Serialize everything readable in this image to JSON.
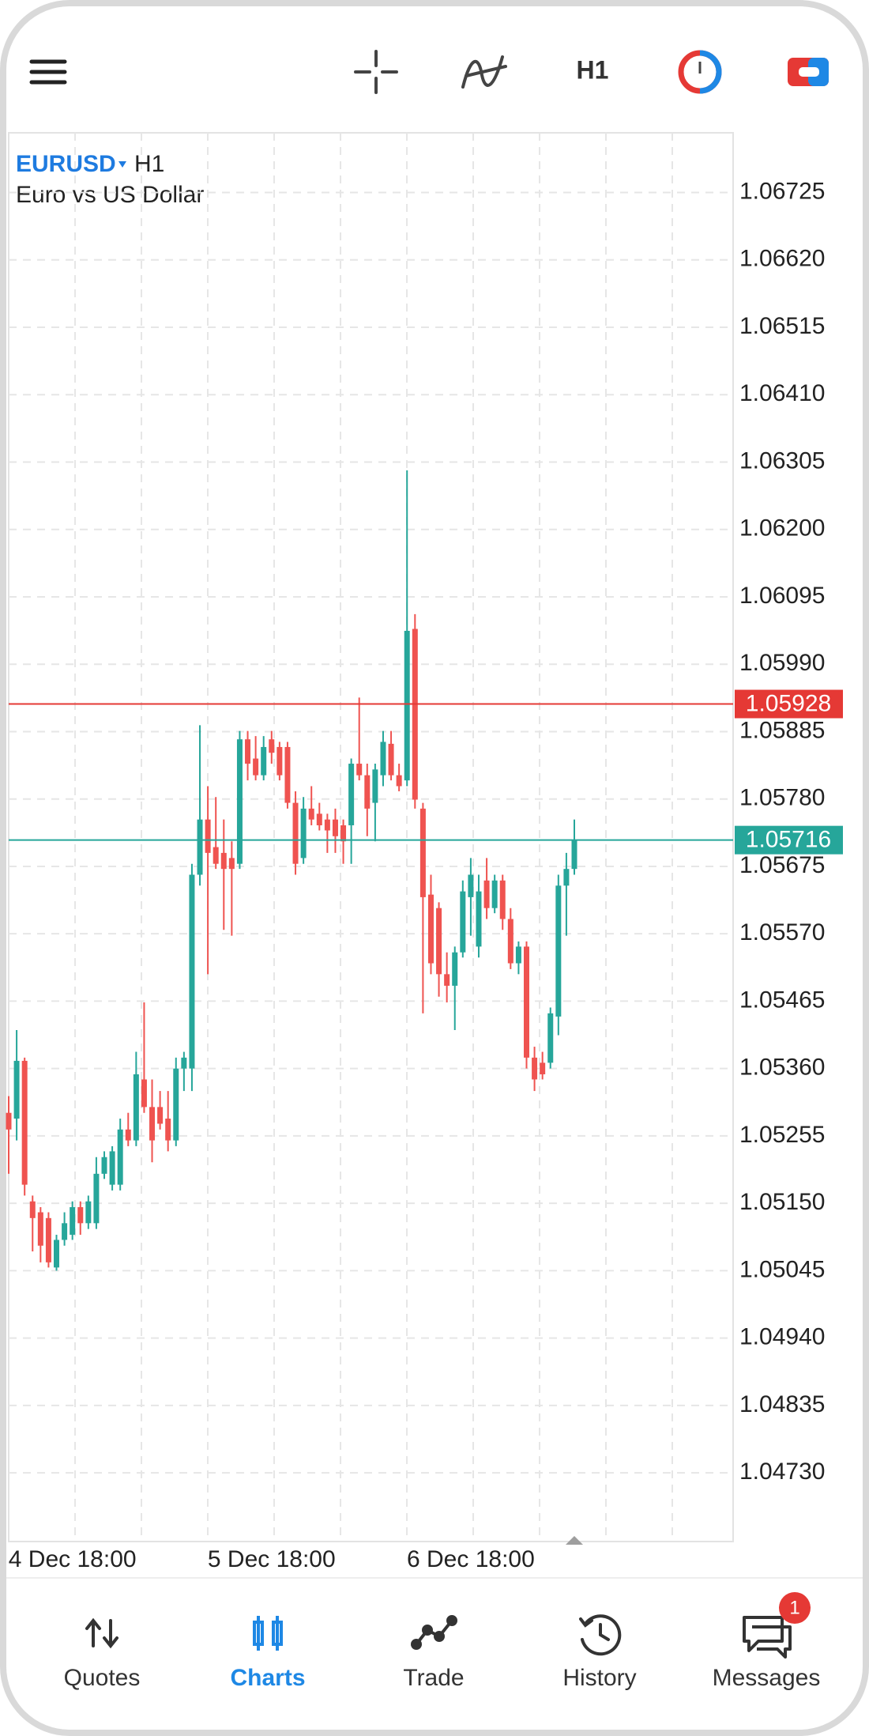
{
  "toolbar": {
    "timeframe": "H1"
  },
  "chart_data": {
    "type": "candlestick",
    "symbol": "EURUSD",
    "timeframe": "H1",
    "description": "Euro vs US Dollar",
    "categories": [
      null,
      null,
      null,
      null,
      null,
      null,
      null,
      null,
      "4 Dec 18:00",
      null,
      null,
      null,
      null,
      null,
      null,
      null,
      null,
      null,
      null,
      null,
      null,
      null,
      null,
      null,
      null,
      null,
      null,
      null,
      null,
      null,
      null,
      null,
      null,
      "5 Dec 18:00",
      null,
      null,
      null,
      null,
      null,
      null,
      null,
      null,
      null,
      null,
      null,
      null,
      null,
      null,
      null,
      null,
      null,
      null,
      null,
      null,
      null,
      null,
      null,
      null,
      "6 Dec 18:00",
      null,
      null,
      null,
      null,
      null,
      null,
      null,
      null,
      null,
      null,
      null,
      null,
      null
    ],
    "open": [
      1.05291,
      1.05282,
      1.05372,
      1.05153,
      1.05136,
      1.05127,
      1.0505,
      1.05093,
      1.05101,
      1.05144,
      1.05119,
      1.05119,
      1.05196,
      1.05179,
      1.05179,
      1.05265,
      1.05248,
      1.05343,
      1.053,
      1.053,
      1.05282,
      1.05248,
      1.0536,
      1.0536,
      1.05662,
      1.05748,
      1.05705,
      1.05696,
      1.05688,
      1.05679,
      1.05873,
      1.05843,
      1.05817,
      1.05873,
      1.05861,
      1.05861,
      1.05774,
      1.05688,
      1.05765,
      1.05757,
      1.05748,
      1.05748,
      1.05739,
      1.05739,
      1.05835,
      1.05817,
      1.05774,
      1.05817,
      1.05866,
      1.05817,
      1.05809,
      1.06045,
      1.05765,
      1.05631,
      1.0561,
      1.05507,
      1.05489,
      1.05541,
      1.05627,
      1.0555,
      1.05653,
      1.0561,
      1.05653,
      1.05593,
      1.05524,
      1.0555,
      1.05377,
      1.05369,
      1.05369,
      1.05441,
      1.05645,
      1.05671
    ],
    "high": [
      1.05317,
      1.0542,
      1.05377,
      1.05162,
      1.05144,
      1.05136,
      1.05101,
      1.05136,
      1.05153,
      1.05153,
      1.05162,
      1.05222,
      1.05231,
      1.05239,
      1.05282,
      1.05291,
      1.05386,
      1.05463,
      1.05343,
      1.05325,
      1.05325,
      1.05377,
      1.05386,
      1.05679,
      1.05895,
      1.058,
      1.05783,
      1.05748,
      1.05714,
      1.05886,
      1.05886,
      1.05878,
      1.05878,
      1.05886,
      1.05869,
      1.05869,
      1.05792,
      1.05783,
      1.058,
      1.05774,
      1.05757,
      1.05765,
      1.05748,
      1.05843,
      1.05938,
      1.05835,
      1.05835,
      1.05886,
      1.05886,
      1.05835,
      1.06292,
      1.06068,
      1.05774,
      1.05662,
      1.05619,
      1.05541,
      1.0555,
      1.05653,
      1.05688,
      1.05662,
      1.05688,
      1.05662,
      1.05662,
      1.0561,
      1.05558,
      1.05558,
      1.05394,
      1.05386,
      1.05455,
      1.05662,
      1.05696,
      1.05748
    ],
    "low": [
      1.05196,
      1.05248,
      1.05162,
      1.05075,
      1.05058,
      1.0505,
      1.05045,
      1.05084,
      1.05093,
      1.05101,
      1.0511,
      1.0511,
      1.05188,
      1.0517,
      1.0517,
      1.05239,
      1.05239,
      1.05291,
      1.05214,
      1.05265,
      1.05231,
      1.05239,
      1.05325,
      1.05325,
      1.05645,
      1.05507,
      1.05671,
      1.05576,
      1.05567,
      1.05671,
      1.05809,
      1.05809,
      1.05809,
      1.05835,
      1.05809,
      1.05765,
      1.05662,
      1.05679,
      1.05739,
      1.05731,
      1.05696,
      1.05696,
      1.05679,
      1.05679,
      1.05809,
      1.05722,
      1.05714,
      1.058,
      1.05809,
      1.05792,
      1.058,
      1.05765,
      1.05446,
      1.05507,
      1.05472,
      1.05463,
      1.0542,
      1.05533,
      1.05567,
      1.05533,
      1.05593,
      1.05602,
      1.05576,
      1.05515,
      1.05507,
      1.0536,
      1.05325,
      1.05343,
      1.0536,
      1.05412,
      1.05567,
      1.05662
    ],
    "close": [
      1.05265,
      1.05372,
      1.05179,
      1.05127,
      1.05084,
      1.05058,
      1.05093,
      1.05119,
      1.05144,
      1.05119,
      1.05153,
      1.05196,
      1.05222,
      1.05231,
      1.05265,
      1.05248,
      1.05351,
      1.053,
      1.05248,
      1.05274,
      1.05248,
      1.0536,
      1.05377,
      1.05662,
      1.05748,
      1.05696,
      1.05679,
      1.05671,
      1.05671,
      1.05873,
      1.05835,
      1.05817,
      1.05861,
      1.05852,
      1.05817,
      1.05774,
      1.05679,
      1.05765,
      1.05748,
      1.05739,
      1.05731,
      1.05722,
      1.05714,
      1.05835,
      1.05817,
      1.05765,
      1.05826,
      1.05869,
      1.05817,
      1.058,
      1.06042,
      1.05779,
      1.05627,
      1.05524,
      1.05507,
      1.05489,
      1.05541,
      1.05636,
      1.05662,
      1.05636,
      1.0561,
      1.05653,
      1.05593,
      1.05524,
      1.0555,
      1.05377,
      1.05343,
      1.05351,
      1.05446,
      1.05645,
      1.05671,
      1.05716
    ],
    "up_color": "#26a69a",
    "down_color": "#ef5350",
    "ask": 1.05928,
    "ask_color": "#e53935",
    "bid": 1.05716,
    "bid_color": "#26a69a",
    "ylim": [
      1.04623,
      1.06818
    ],
    "yticks": [
      1.06725,
      {
        "value": 1.0662,
        "label": "1.06620"
      },
      1.06515,
      {
        "value": 1.0641,
        "label": "1.06410"
      },
      1.06305,
      {
        "value": 1.062,
        "label": "1.06200"
      },
      1.06095,
      {
        "value": 1.0599,
        "label": "1.05990"
      },
      1.05885,
      {
        "value": 1.0578,
        "label": "1.05780"
      },
      1.05675,
      {
        "value": 1.0557,
        "label": "1.05570"
      },
      1.05465,
      {
        "value": 1.0536,
        "label": "1.05360"
      },
      1.05255,
      {
        "value": 1.0515,
        "label": "1.05150"
      },
      1.05045,
      {
        "value": 1.0494,
        "label": "1.04940"
      },
      1.04835,
      {
        "value": 1.0473,
        "label": "1.04730"
      }
    ],
    "grid": true
  },
  "nav": {
    "items": [
      "Quotes",
      "Charts",
      "Trade",
      "History",
      "Messages"
    ],
    "active": 1,
    "badge": 1
  }
}
